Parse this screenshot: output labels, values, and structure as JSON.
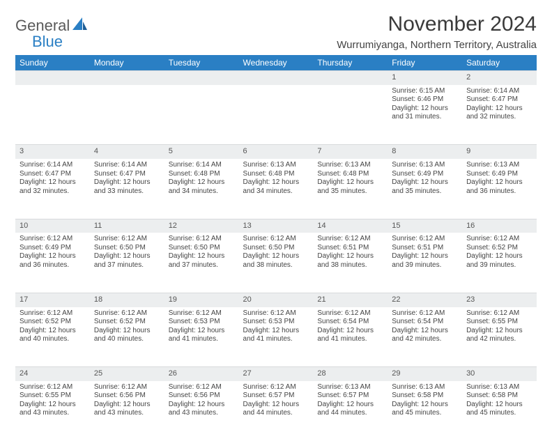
{
  "brand": {
    "part1": "General",
    "part2": "Blue"
  },
  "title": "November 2024",
  "location": "Wurrumiyanga, Northern Territory, Australia",
  "colors": {
    "header_bg": "#2a7fc4",
    "header_text": "#ffffff",
    "daynum_bg": "#eceeef",
    "body_text": "#444444",
    "brand_gray": "#5a5a5a",
    "brand_blue": "#2a7fc4"
  },
  "weekdays": [
    "Sunday",
    "Monday",
    "Tuesday",
    "Wednesday",
    "Thursday",
    "Friday",
    "Saturday"
  ],
  "weeks": [
    [
      null,
      null,
      null,
      null,
      null,
      {
        "n": "1",
        "sr": "6:15 AM",
        "ss": "6:46 PM",
        "dl": "12 hours and 31 minutes."
      },
      {
        "n": "2",
        "sr": "6:14 AM",
        "ss": "6:47 PM",
        "dl": "12 hours and 32 minutes."
      }
    ],
    [
      {
        "n": "3",
        "sr": "6:14 AM",
        "ss": "6:47 PM",
        "dl": "12 hours and 32 minutes."
      },
      {
        "n": "4",
        "sr": "6:14 AM",
        "ss": "6:47 PM",
        "dl": "12 hours and 33 minutes."
      },
      {
        "n": "5",
        "sr": "6:14 AM",
        "ss": "6:48 PM",
        "dl": "12 hours and 34 minutes."
      },
      {
        "n": "6",
        "sr": "6:13 AM",
        "ss": "6:48 PM",
        "dl": "12 hours and 34 minutes."
      },
      {
        "n": "7",
        "sr": "6:13 AM",
        "ss": "6:48 PM",
        "dl": "12 hours and 35 minutes."
      },
      {
        "n": "8",
        "sr": "6:13 AM",
        "ss": "6:49 PM",
        "dl": "12 hours and 35 minutes."
      },
      {
        "n": "9",
        "sr": "6:13 AM",
        "ss": "6:49 PM",
        "dl": "12 hours and 36 minutes."
      }
    ],
    [
      {
        "n": "10",
        "sr": "6:12 AM",
        "ss": "6:49 PM",
        "dl": "12 hours and 36 minutes."
      },
      {
        "n": "11",
        "sr": "6:12 AM",
        "ss": "6:50 PM",
        "dl": "12 hours and 37 minutes."
      },
      {
        "n": "12",
        "sr": "6:12 AM",
        "ss": "6:50 PM",
        "dl": "12 hours and 37 minutes."
      },
      {
        "n": "13",
        "sr": "6:12 AM",
        "ss": "6:50 PM",
        "dl": "12 hours and 38 minutes."
      },
      {
        "n": "14",
        "sr": "6:12 AM",
        "ss": "6:51 PM",
        "dl": "12 hours and 38 minutes."
      },
      {
        "n": "15",
        "sr": "6:12 AM",
        "ss": "6:51 PM",
        "dl": "12 hours and 39 minutes."
      },
      {
        "n": "16",
        "sr": "6:12 AM",
        "ss": "6:52 PM",
        "dl": "12 hours and 39 minutes."
      }
    ],
    [
      {
        "n": "17",
        "sr": "6:12 AM",
        "ss": "6:52 PM",
        "dl": "12 hours and 40 minutes."
      },
      {
        "n": "18",
        "sr": "6:12 AM",
        "ss": "6:52 PM",
        "dl": "12 hours and 40 minutes."
      },
      {
        "n": "19",
        "sr": "6:12 AM",
        "ss": "6:53 PM",
        "dl": "12 hours and 41 minutes."
      },
      {
        "n": "20",
        "sr": "6:12 AM",
        "ss": "6:53 PM",
        "dl": "12 hours and 41 minutes."
      },
      {
        "n": "21",
        "sr": "6:12 AM",
        "ss": "6:54 PM",
        "dl": "12 hours and 41 minutes."
      },
      {
        "n": "22",
        "sr": "6:12 AM",
        "ss": "6:54 PM",
        "dl": "12 hours and 42 minutes."
      },
      {
        "n": "23",
        "sr": "6:12 AM",
        "ss": "6:55 PM",
        "dl": "12 hours and 42 minutes."
      }
    ],
    [
      {
        "n": "24",
        "sr": "6:12 AM",
        "ss": "6:55 PM",
        "dl": "12 hours and 43 minutes."
      },
      {
        "n": "25",
        "sr": "6:12 AM",
        "ss": "6:56 PM",
        "dl": "12 hours and 43 minutes."
      },
      {
        "n": "26",
        "sr": "6:12 AM",
        "ss": "6:56 PM",
        "dl": "12 hours and 43 minutes."
      },
      {
        "n": "27",
        "sr": "6:12 AM",
        "ss": "6:57 PM",
        "dl": "12 hours and 44 minutes."
      },
      {
        "n": "28",
        "sr": "6:13 AM",
        "ss": "6:57 PM",
        "dl": "12 hours and 44 minutes."
      },
      {
        "n": "29",
        "sr": "6:13 AM",
        "ss": "6:58 PM",
        "dl": "12 hours and 45 minutes."
      },
      {
        "n": "30",
        "sr": "6:13 AM",
        "ss": "6:58 PM",
        "dl": "12 hours and 45 minutes."
      }
    ]
  ],
  "labels": {
    "sunrise": "Sunrise:",
    "sunset": "Sunset:",
    "daylight": "Daylight:"
  }
}
